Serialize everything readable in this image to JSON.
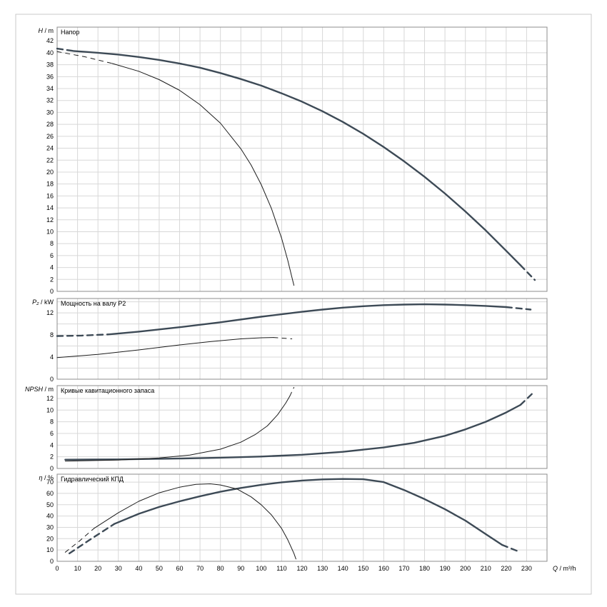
{
  "colors": {
    "curve_main": "#3d4a56",
    "curve_alt": "#1c1c1c",
    "grid": "#d8d8d8",
    "frame": "#8c8c8c",
    "outer_frame": "#c9c9c9",
    "text": "#000000",
    "background": "#ffffff"
  },
  "chart_data": {
    "type": "line",
    "x_label": "Q / m³/h",
    "x_lim": [
      0,
      240
    ],
    "x_ticks": [
      0,
      10,
      20,
      30,
      40,
      50,
      60,
      70,
      80,
      90,
      100,
      110,
      120,
      130,
      140,
      150,
      160,
      170,
      180,
      190,
      200,
      210,
      220,
      230
    ],
    "panels": [
      {
        "title": "Напор",
        "ylabel": "H / m",
        "y_lim": [
          0,
          44.3
        ],
        "y_ticks": [
          0,
          2,
          4,
          6,
          8,
          10,
          12,
          14,
          16,
          18,
          20,
          22,
          24,
          26,
          28,
          30,
          32,
          34,
          36,
          38,
          40,
          42
        ],
        "y_grid": [
          2,
          4,
          6,
          8,
          10,
          12,
          14,
          16,
          18,
          20,
          22,
          24,
          26,
          28,
          30,
          32,
          34,
          36,
          38,
          40,
          42
        ],
        "series": [
          {
            "name": "head-main",
            "style": "main",
            "dash": false,
            "points": [
              [
                8,
                40.3
              ],
              [
                20,
                40.0
              ],
              [
                30,
                39.7
              ],
              [
                40,
                39.3
              ],
              [
                50,
                38.8
              ],
              [
                60,
                38.2
              ],
              [
                70,
                37.5
              ],
              [
                80,
                36.6
              ],
              [
                90,
                35.6
              ],
              [
                100,
                34.5
              ],
              [
                110,
                33.2
              ],
              [
                120,
                31.8
              ],
              [
                130,
                30.2
              ],
              [
                140,
                28.4
              ],
              [
                150,
                26.4
              ],
              [
                160,
                24.2
              ],
              [
                170,
                21.8
              ],
              [
                180,
                19.2
              ],
              [
                190,
                16.4
              ],
              [
                200,
                13.4
              ],
              [
                210,
                10.2
              ],
              [
                220,
                6.8
              ],
              [
                227,
                4.4
              ]
            ]
          },
          {
            "name": "head-main-min-flow",
            "style": "main",
            "dash": true,
            "points": [
              [
                0,
                40.7
              ],
              [
                8,
                40.3
              ]
            ]
          },
          {
            "name": "head-main-max-flow",
            "style": "main",
            "dash": true,
            "points": [
              [
                227,
                4.4
              ],
              [
                234,
                1.9
              ]
            ]
          },
          {
            "name": "head-alt",
            "style": "alt",
            "dash": false,
            "points": [
              [
                27,
                38.2
              ],
              [
                40,
                36.9
              ],
              [
                50,
                35.5
              ],
              [
                60,
                33.7
              ],
              [
                70,
                31.3
              ],
              [
                80,
                28.2
              ],
              [
                90,
                23.9
              ],
              [
                95,
                21.2
              ],
              [
                100,
                17.9
              ],
              [
                105,
                13.9
              ],
              [
                110,
                8.9
              ],
              [
                113,
                5.2
              ],
              [
                115,
                2.4
              ],
              [
                116,
                1.0
              ]
            ]
          },
          {
            "name": "head-alt-min-flow",
            "style": "alt",
            "dash": true,
            "points": [
              [
                0,
                40.2
              ],
              [
                14,
                39.3
              ],
              [
                27,
                38.2
              ]
            ]
          }
        ]
      },
      {
        "title": "Мощность на валу P2",
        "ylabel": "P₂ / kW",
        "y_lim": [
          0,
          14.6
        ],
        "y_ticks": [
          0,
          4,
          8,
          12
        ],
        "y_grid": [
          2,
          4,
          6,
          8,
          10,
          12,
          14
        ],
        "series": [
          {
            "name": "power-main",
            "style": "main",
            "dash": false,
            "points": [
              [
                25,
                8.1
              ],
              [
                40,
                8.6
              ],
              [
                60,
                9.4
              ],
              [
                80,
                10.3
              ],
              [
                100,
                11.3
              ],
              [
                120,
                12.2
              ],
              [
                130,
                12.6
              ],
              [
                140,
                12.95
              ],
              [
                150,
                13.2
              ],
              [
                160,
                13.4
              ],
              [
                170,
                13.5
              ],
              [
                180,
                13.55
              ],
              [
                190,
                13.5
              ],
              [
                200,
                13.4
              ],
              [
                210,
                13.25
              ],
              [
                220,
                13.05
              ]
            ]
          },
          {
            "name": "power-main-min-flow",
            "style": "main",
            "dash": true,
            "points": [
              [
                0,
                7.8
              ],
              [
                12,
                7.9
              ],
              [
                25,
                8.1
              ]
            ]
          },
          {
            "name": "power-main-max-flow",
            "style": "main",
            "dash": true,
            "points": [
              [
                220,
                13.05
              ],
              [
                232,
                12.6
              ]
            ]
          },
          {
            "name": "power-alt",
            "style": "alt",
            "dash": false,
            "points": [
              [
                0,
                3.9
              ],
              [
                20,
                4.5
              ],
              [
                40,
                5.3
              ],
              [
                60,
                6.2
              ],
              [
                75,
                6.8
              ],
              [
                90,
                7.3
              ],
              [
                100,
                7.5
              ],
              [
                106,
                7.55
              ]
            ]
          },
          {
            "name": "power-alt-max-flow",
            "style": "alt",
            "dash": true,
            "points": [
              [
                106,
                7.55
              ],
              [
                115,
                7.3
              ]
            ]
          }
        ]
      },
      {
        "title": "Кривые кавитационного запаса",
        "ylabel": "NPSH / m",
        "y_lim": [
          0,
          14.2
        ],
        "y_ticks": [
          0,
          2,
          4,
          6,
          8,
          10,
          12
        ],
        "y_grid": [
          2,
          4,
          6,
          8,
          10,
          12
        ],
        "series": [
          {
            "name": "npsh-main",
            "style": "main",
            "dash": false,
            "points": [
              [
                4,
                1.5
              ],
              [
                30,
                1.55
              ],
              [
                60,
                1.7
              ],
              [
                80,
                1.85
              ],
              [
                100,
                2.05
              ],
              [
                120,
                2.35
              ],
              [
                140,
                2.85
              ],
              [
                160,
                3.6
              ],
              [
                175,
                4.4
              ],
              [
                190,
                5.6
              ],
              [
                200,
                6.7
              ],
              [
                210,
                8.0
              ],
              [
                220,
                9.6
              ],
              [
                227,
                10.9
              ]
            ]
          },
          {
            "name": "npsh-main-max-flow",
            "style": "main",
            "dash": true,
            "points": [
              [
                227,
                10.9
              ],
              [
                233,
                12.9
              ]
            ]
          },
          {
            "name": "npsh-alt",
            "style": "alt",
            "dash": false,
            "points": [
              [
                4,
                1.25
              ],
              [
                30,
                1.45
              ],
              [
                50,
                1.8
              ],
              [
                65,
                2.3
              ],
              [
                80,
                3.3
              ],
              [
                90,
                4.5
              ],
              [
                97,
                5.8
              ],
              [
                103,
                7.3
              ],
              [
                108,
                9.2
              ],
              [
                112,
                11.2
              ],
              [
                114,
                12.4
              ]
            ]
          },
          {
            "name": "npsh-alt-max-flow",
            "style": "alt",
            "dash": true,
            "points": [
              [
                114,
                12.4
              ],
              [
                116,
                13.9
              ]
            ]
          }
        ]
      },
      {
        "title": "Гидравлический КПД",
        "ylabel": "η / %",
        "y_lim": [
          0,
          77
        ],
        "y_ticks": [
          0,
          10,
          20,
          30,
          40,
          50,
          60,
          70
        ],
        "y_grid": [
          10,
          20,
          30,
          40,
          50,
          60,
          70
        ],
        "series": [
          {
            "name": "eff-main",
            "style": "main",
            "dash": false,
            "points": [
              [
                28,
                33
              ],
              [
                40,
                42
              ],
              [
                50,
                48
              ],
              [
                60,
                53
              ],
              [
                70,
                57.5
              ],
              [
                80,
                61.5
              ],
              [
                90,
                64.8
              ],
              [
                100,
                67.6
              ],
              [
                110,
                69.8
              ],
              [
                120,
                71.4
              ],
              [
                130,
                72.4
              ],
              [
                140,
                72.8
              ],
              [
                150,
                72.5
              ],
              [
                160,
                70.0
              ],
              [
                170,
                63.0
              ],
              [
                180,
                55.0
              ],
              [
                190,
                46.0
              ],
              [
                200,
                36.0
              ],
              [
                210,
                24.0
              ],
              [
                218,
                14.5
              ]
            ]
          },
          {
            "name": "eff-main-min-flow",
            "style": "main",
            "dash": true,
            "points": [
              [
                6,
                7
              ],
              [
                16,
                19
              ],
              [
                28,
                33
              ]
            ]
          },
          {
            "name": "eff-main-max-flow",
            "style": "main",
            "dash": true,
            "points": [
              [
                218,
                14.5
              ],
              [
                227,
                8
              ]
            ]
          },
          {
            "name": "eff-alt",
            "style": "alt",
            "dash": false,
            "points": [
              [
                18,
                29
              ],
              [
                30,
                43
              ],
              [
                40,
                53
              ],
              [
                50,
                60.5
              ],
              [
                60,
                65.5
              ],
              [
                68,
                68
              ],
              [
                75,
                68.5
              ],
              [
                80,
                67.5
              ],
              [
                88,
                64
              ],
              [
                95,
                57
              ],
              [
                100,
                50
              ],
              [
                105,
                41
              ],
              [
                110,
                29
              ],
              [
                113,
                19
              ],
              [
                116,
                7
              ],
              [
                117,
                2
              ]
            ]
          },
          {
            "name": "eff-alt-min-flow",
            "style": "alt",
            "dash": true,
            "points": [
              [
                4,
                8
              ],
              [
                11,
                18
              ],
              [
                18,
                29
              ]
            ]
          }
        ]
      }
    ]
  }
}
